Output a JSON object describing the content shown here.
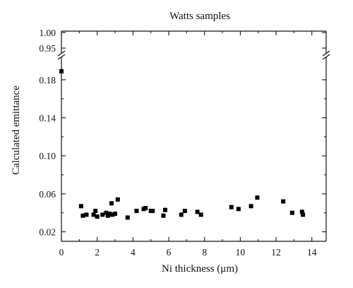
{
  "chart_data": {
    "type": "scatter",
    "title": "Watts samples",
    "xlabel": "Ni thickness (μm)",
    "ylabel": "Calculated emittance",
    "xlim": [
      0,
      14.8
    ],
    "ylim": [
      0.01,
      1.0
    ],
    "y_axis_break": {
      "lower_range": [
        0.01,
        0.197
      ],
      "upper_range": [
        0.95,
        1.0
      ]
    },
    "x_ticks": [
      0,
      2,
      4,
      6,
      8,
      10,
      12,
      14
    ],
    "x_tick_labels": [
      "0",
      "2",
      "4",
      "6",
      "8",
      "10",
      "12",
      "14"
    ],
    "y_ticks_lower": [
      0.02,
      0.06,
      0.1,
      0.14,
      0.18
    ],
    "y_tick_labels_lower": [
      "0.02",
      "0.06",
      "0.10",
      "0.14",
      "0.18"
    ],
    "y_ticks_upper": [
      0.95,
      1.0
    ],
    "y_tick_labels_upper": [
      "0.95",
      "1.00"
    ],
    "grid": false,
    "legend": "none",
    "marker": "filled-square",
    "marker_color": "#000000",
    "series": [
      {
        "x": [
          0.0,
          1.1,
          1.2,
          1.4,
          1.8,
          1.9,
          2.0,
          2.3,
          2.5,
          2.6,
          2.7,
          2.8,
          2.85,
          3.0,
          3.15,
          3.7,
          4.2,
          4.6,
          4.7,
          5.0,
          5.1,
          5.7,
          5.8,
          6.7,
          6.9,
          7.6,
          7.8,
          9.5,
          9.9,
          10.6,
          10.95,
          12.4,
          12.9,
          13.45,
          13.5
        ],
        "y": [
          0.189,
          0.047,
          0.037,
          0.038,
          0.038,
          0.042,
          0.036,
          0.038,
          0.04,
          0.037,
          0.039,
          0.05,
          0.038,
          0.039,
          0.054,
          0.035,
          0.042,
          0.044,
          0.045,
          0.042,
          0.042,
          0.037,
          0.043,
          0.038,
          0.042,
          0.041,
          0.038,
          0.046,
          0.044,
          0.047,
          0.056,
          0.052,
          0.04,
          0.041,
          0.038
        ]
      }
    ]
  }
}
